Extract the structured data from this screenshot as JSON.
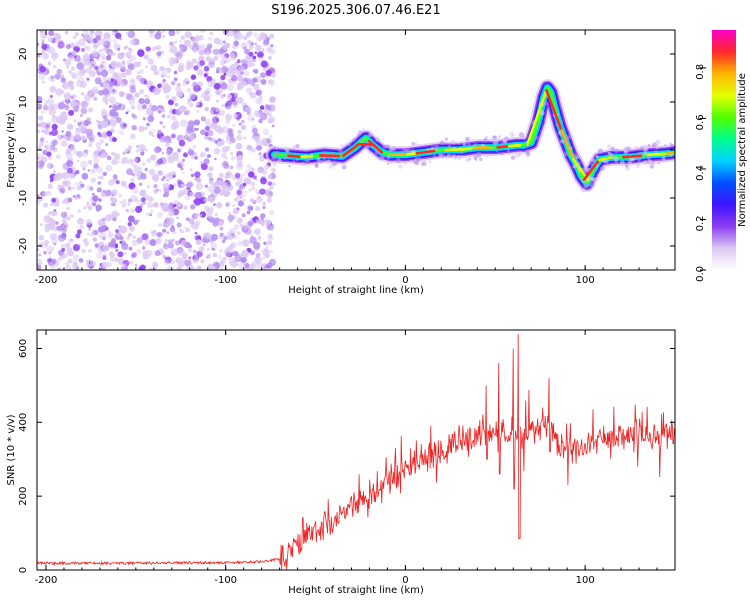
{
  "title": "S196.2025.306.07.46.E21",
  "colors": {
    "snr_line": "#ee2222",
    "colormap": [
      "#ffffff",
      "#dcc8f4",
      "#8c3cf0",
      "#3c14ff",
      "#0050ff",
      "#00d2ff",
      "#00ff8c",
      "#50ff00",
      "#e6ff00",
      "#ffb400",
      "#ff2828",
      "#ff00c8"
    ]
  },
  "chart_data": [
    {
      "type": "heatmap",
      "title": "S196.2025.306.07.46.E21",
      "xlabel": "Height of straight line (km)",
      "ylabel": "Frequency (Hz)",
      "xlim": [
        -205,
        150
      ],
      "ylim": [
        -25,
        25
      ],
      "xticks": [
        -200,
        -100,
        0,
        100
      ],
      "yticks": [
        20,
        10,
        0,
        -10,
        -20
      ],
      "xtick_labels": [
        "-200",
        "-100",
        "0",
        "100"
      ],
      "ytick_labels": [
        "20",
        "10",
        "0",
        "-10",
        "-20"
      ],
      "noise_region_x": [
        -205,
        -73
      ],
      "ridge": {
        "x": [
          -73,
          -65,
          -55,
          -45,
          -35,
          -28,
          -22,
          -18,
          -13,
          -8,
          0,
          10,
          20,
          30,
          40,
          50,
          58,
          62,
          66,
          70,
          74,
          77,
          79,
          81,
          83,
          86,
          89,
          92,
          95,
          98,
          101,
          104,
          108,
          115,
          125,
          135,
          145,
          150
        ],
        "y": [
          -1,
          -1.2,
          -1.5,
          -1,
          -1.3,
          0.5,
          2.5,
          1,
          -0.5,
          -1,
          -1,
          -0.5,
          0,
          0,
          0.5,
          0.5,
          0.8,
          1,
          1,
          1.5,
          6,
          11,
          13,
          12,
          9,
          5,
          2,
          -1,
          -3,
          -5.5,
          -7,
          -4.5,
          -2,
          -1.5,
          -1.5,
          -1,
          -0.8,
          -0.5
        ]
      },
      "colorbar": {
        "label": "Normalized spectral amplitude",
        "range": [
          0,
          0.95
        ],
        "ticks": [
          "0.0",
          "0.2",
          "0.4",
          "0.6",
          "0.8"
        ]
      }
    },
    {
      "type": "line",
      "xlabel": "Height of straight line (km)",
      "ylabel": "SNR (10 * v/v)",
      "xlim": [
        -205,
        150
      ],
      "ylim": [
        0,
        650
      ],
      "xticks": [
        -200,
        -100,
        0,
        100
      ],
      "yticks": [
        0,
        200,
        400,
        600
      ],
      "xtick_labels": [
        "-200",
        "-100",
        "0",
        "100"
      ],
      "ytick_labels": [
        "0",
        "200",
        "400",
        "600"
      ],
      "series": [
        {
          "name": "SNR",
          "trend_x": [
            -205,
            -150,
            -100,
            -80,
            -70,
            -60,
            -50,
            -40,
            -30,
            -20,
            -10,
            0,
            10,
            20,
            30,
            40,
            50,
            55,
            60,
            65,
            70,
            75,
            80,
            85,
            90,
            100,
            110,
            120,
            130,
            140,
            150
          ],
          "trend_y": [
            18,
            18,
            20,
            22,
            30,
            60,
            110,
            130,
            160,
            200,
            240,
            275,
            300,
            320,
            345,
            355,
            370,
            375,
            370,
            350,
            380,
            390,
            380,
            340,
            320,
            330,
            350,
            360,
            365,
            360,
            355
          ],
          "noise_amplitude": 45,
          "spikes": [
            {
              "x": 63,
              "max": 640,
              "min": 85
            },
            {
              "x": 60,
              "max": 600,
              "min": 220
            },
            {
              "x": 52,
              "max": 560,
              "min": 260
            },
            {
              "x": 45,
              "max": 500,
              "min": 300
            },
            {
              "x": 80,
              "max": 520,
              "min": 320
            }
          ]
        }
      ]
    }
  ]
}
